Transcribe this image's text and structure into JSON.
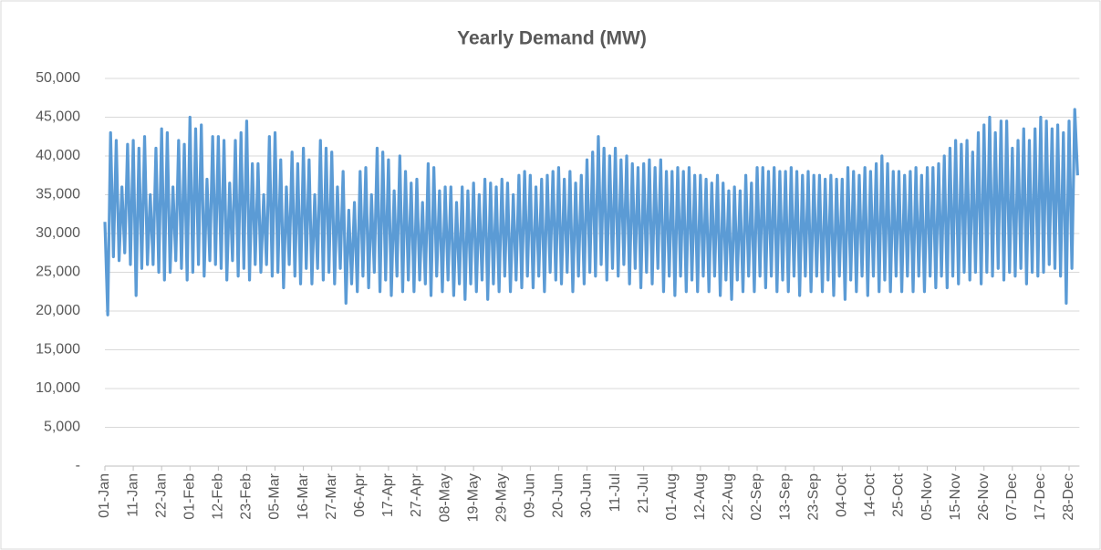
{
  "chart_data": {
    "type": "line",
    "title": "Yearly Demand (MW)",
    "color": "#5b9bd5",
    "grid": true,
    "ylim": [
      0,
      50000
    ],
    "yticks": [
      {
        "value": 0,
        "label": "-"
      },
      {
        "value": 5000,
        "label": "5,000"
      },
      {
        "value": 10000,
        "label": "10,000"
      },
      {
        "value": 15000,
        "label": "15,000"
      },
      {
        "value": 20000,
        "label": "20,000"
      },
      {
        "value": 25000,
        "label": "25,000"
      },
      {
        "value": 30000,
        "label": "30,000"
      },
      {
        "value": 35000,
        "label": "35,000"
      },
      {
        "value": 40000,
        "label": "40,000"
      },
      {
        "value": 45000,
        "label": "45,000"
      },
      {
        "value": 50000,
        "label": "50,000"
      }
    ],
    "categories": [
      "01-Jan",
      null,
      null,
      null,
      null,
      null,
      null,
      null,
      null,
      null,
      "11-Jan",
      null,
      null,
      null,
      null,
      null,
      null,
      null,
      null,
      null,
      "22-Jan",
      null,
      null,
      null,
      null,
      null,
      null,
      null,
      null,
      null,
      "01-Feb",
      null,
      null,
      null,
      null,
      null,
      null,
      null,
      null,
      null,
      "12-Feb",
      null,
      null,
      null,
      null,
      null,
      null,
      null,
      null,
      null,
      "23-Feb",
      null,
      null,
      null,
      null,
      null,
      null,
      null,
      null,
      null,
      "05-Mar",
      null,
      null,
      null,
      null,
      null,
      null,
      null,
      null,
      null,
      "16-Mar",
      null,
      null,
      null,
      null,
      null,
      null,
      null,
      null,
      null,
      "27-Mar",
      null,
      null,
      null,
      null,
      null,
      null,
      null,
      null,
      null,
      "06-Apr",
      null,
      null,
      null,
      null,
      null,
      null,
      null,
      null,
      null,
      "17-Apr",
      null,
      null,
      null,
      null,
      null,
      null,
      null,
      null,
      null,
      "27-Apr",
      null,
      null,
      null,
      null,
      null,
      null,
      null,
      null,
      null,
      "08-May",
      null,
      null,
      null,
      null,
      null,
      null,
      null,
      null,
      null,
      "19-May",
      null,
      null,
      null,
      null,
      null,
      null,
      null,
      null,
      null,
      "29-May",
      null,
      null,
      null,
      null,
      null,
      null,
      null,
      null,
      null,
      "09-Jun",
      null,
      null,
      null,
      null,
      null,
      null,
      null,
      null,
      null,
      "20-Jun",
      null,
      null,
      null,
      null,
      null,
      null,
      null,
      null,
      null,
      "30-Jun",
      null,
      null,
      null,
      null,
      null,
      null,
      null,
      null,
      null,
      "11-Jul",
      null,
      null,
      null,
      null,
      null,
      null,
      null,
      null,
      null,
      "21-Jul",
      null,
      null,
      null,
      null,
      null,
      null,
      null,
      null,
      null,
      "01-Aug",
      null,
      null,
      null,
      null,
      null,
      null,
      null,
      null,
      null,
      "12-Aug",
      null,
      null,
      null,
      null,
      null,
      null,
      null,
      null,
      null,
      "22-Aug",
      null,
      null,
      null,
      null,
      null,
      null,
      null,
      null,
      null,
      "02-Sep",
      null,
      null,
      null,
      null,
      null,
      null,
      null,
      null,
      null,
      "13-Sep",
      null,
      null,
      null,
      null,
      null,
      null,
      null,
      null,
      null,
      "23-Sep",
      null,
      null,
      null,
      null,
      null,
      null,
      null,
      null,
      null,
      "04-Oct",
      null,
      null,
      null,
      null,
      null,
      null,
      null,
      null,
      null,
      "14-Oct",
      null,
      null,
      null,
      null,
      null,
      null,
      null,
      null,
      null,
      "25-Oct",
      null,
      null,
      null,
      null,
      null,
      null,
      null,
      null,
      null,
      "05-Nov",
      null,
      null,
      null,
      null,
      null,
      null,
      null,
      null,
      null,
      "15-Nov",
      null,
      null,
      null,
      null,
      null,
      null,
      null,
      null,
      null,
      "26-Nov",
      null,
      null,
      null,
      null,
      null,
      null,
      null,
      null,
      null,
      "07-Dec",
      null,
      null,
      null,
      null,
      null,
      null,
      null,
      null,
      null,
      "17-Dec",
      null,
      null,
      null,
      null,
      null,
      null,
      null,
      null,
      null,
      "28-Dec",
      null,
      null,
      null
    ],
    "values": [
      31500,
      19500,
      43000,
      27000,
      42000,
      26500,
      36000,
      27500,
      41500,
      26000,
      42000,
      22000,
      41000,
      25500,
      42500,
      26000,
      35000,
      26000,
      41000,
      25000,
      43500,
      24000,
      43000,
      25000,
      36000,
      26500,
      42000,
      25500,
      41500,
      24000,
      45000,
      25000,
      43500,
      26000,
      44000,
      24500,
      37000,
      26500,
      42500,
      26000,
      42500,
      25500,
      42000,
      24000,
      36500,
      26500,
      42000,
      24500,
      43000,
      25500,
      44500,
      24000,
      39000,
      26000,
      39000,
      25000,
      35000,
      26000,
      42500,
      24500,
      43000,
      25000,
      39500,
      23000,
      36000,
      26000,
      40500,
      24500,
      39000,
      23500,
      41000,
      25500,
      39500,
      23500,
      35000,
      25500,
      42000,
      24000,
      41000,
      25000,
      40500,
      23500,
      36000,
      25500,
      38000,
      21000,
      33000,
      23500,
      34000,
      22500,
      38000,
      24500,
      38500,
      23000,
      35000,
      25000,
      41000,
      22500,
      40500,
      24000,
      39500,
      22000,
      35500,
      24500,
      40000,
      22500,
      38000,
      24000,
      36500,
      22500,
      37000,
      24000,
      34000,
      23500,
      39000,
      22000,
      38500,
      24500,
      35500,
      22500,
      36000,
      24000,
      36000,
      22000,
      34000,
      23500,
      36000,
      21500,
      35500,
      23500,
      36500,
      22500,
      35000,
      24000,
      37000,
      21500,
      36500,
      23500,
      36000,
      22500,
      37000,
      24500,
      36500,
      22500,
      35000,
      24000,
      37500,
      23000,
      38000,
      24500,
      37500,
      23000,
      36000,
      24500,
      37000,
      22500,
      37500,
      25000,
      38000,
      24000,
      38500,
      23500,
      37000,
      25000,
      38000,
      22500,
      36500,
      24500,
      37500,
      23500,
      39500,
      25000,
      40500,
      24500,
      42500,
      26000,
      41000,
      24000,
      40000,
      25500,
      41000,
      24500,
      39500,
      26000,
      40000,
      23500,
      39000,
      25500,
      38500,
      23000,
      39000,
      25000,
      39500,
      23500,
      38500,
      25500,
      39500,
      22500,
      38000,
      24500,
      38000,
      22000,
      38500,
      24500,
      38000,
      22500,
      38500,
      24000,
      37500,
      22500,
      37500,
      24500,
      37000,
      22500,
      36500,
      24500,
      37500,
      22000,
      36500,
      24000,
      35500,
      21500,
      36000,
      24000,
      35500,
      22500,
      37500,
      24500,
      36500,
      22500,
      38500,
      24500,
      38500,
      23000,
      38000,
      24500,
      38500,
      22500,
      38000,
      24000,
      38000,
      22500,
      38500,
      24500,
      38000,
      22000,
      37500,
      24500,
      38000,
      22500,
      37500,
      24500,
      37500,
      22500,
      37000,
      24000,
      37500,
      22000,
      37000,
      24500,
      37000,
      21500,
      38500,
      24000,
      38000,
      22500,
      37500,
      24500,
      38500,
      22000,
      38000,
      24500,
      39000,
      22500,
      40000,
      24000,
      39000,
      22500,
      38000,
      24500,
      38000,
      22500,
      37500,
      24500,
      38000,
      22500,
      38500,
      24500,
      37500,
      22500,
      38500,
      24500,
      38500,
      23000,
      39000,
      24500,
      40000,
      23000,
      41000,
      24500,
      42000,
      23500,
      41500,
      25000,
      42000,
      24000,
      40500,
      25000,
      43000,
      23500,
      44000,
      25000,
      45000,
      24500,
      43000,
      25500,
      44500,
      24000,
      44500,
      25000,
      41000,
      24500,
      42000,
      25500,
      43500,
      23500,
      42000,
      25000,
      43500,
      24500,
      45000,
      25000,
      44500,
      26000,
      43500,
      25500,
      44000,
      24500,
      43000,
      21000,
      44500,
      25500,
      46000,
      37500
    ]
  }
}
